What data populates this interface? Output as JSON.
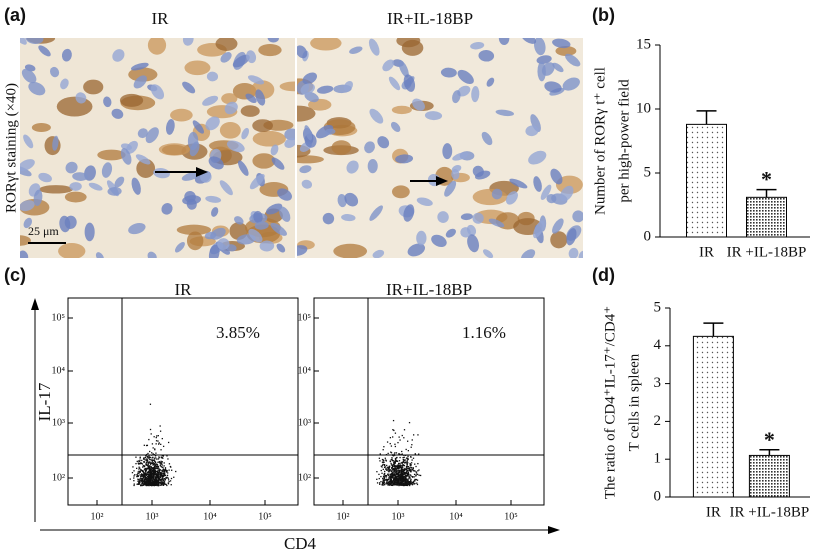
{
  "micrograph": {
    "label": "(a)",
    "titles": [
      "IR",
      "IR+IL-18BP"
    ],
    "staining": "RORγt staining (×40)",
    "scale": "25 μm"
  },
  "flow": {
    "label": "(c)",
    "y_axis": "IL-17",
    "x_axis": "CD4",
    "ticks": [
      "10²",
      "10³",
      "10⁴",
      "10⁵"
    ],
    "plots": [
      {
        "title": "IR",
        "percent": "3.85%"
      },
      {
        "title": "IR+IL-18BP",
        "percent": "1.16%"
      }
    ]
  },
  "chart_data": [
    {
      "type": "bar",
      "label": "(b)",
      "ylabel": [
        "Number of RORγ t⁺ cell",
        "per high-power field"
      ],
      "categories": [
        "IR",
        "IR +IL-18BP"
      ],
      "values": [
        8.8,
        3.1
      ],
      "errors": [
        1.05,
        0.6
      ],
      "significance": [
        null,
        "*"
      ],
      "ylim": [
        0,
        15
      ],
      "yticks": [
        0,
        5,
        10,
        15
      ]
    },
    {
      "type": "bar",
      "label": "(d)",
      "ylabel": [
        "The ratio of CD4⁺IL-17⁺/CD4⁺",
        "T cells in spleen"
      ],
      "categories": [
        "IR",
        "IR +IL-18BP"
      ],
      "values": [
        4.25,
        1.1
      ],
      "errors": [
        0.35,
        0.15
      ],
      "significance": [
        null,
        "*"
      ],
      "ylim": [
        0,
        5
      ],
      "yticks": [
        0,
        1,
        2,
        3,
        4,
        5
      ]
    }
  ]
}
